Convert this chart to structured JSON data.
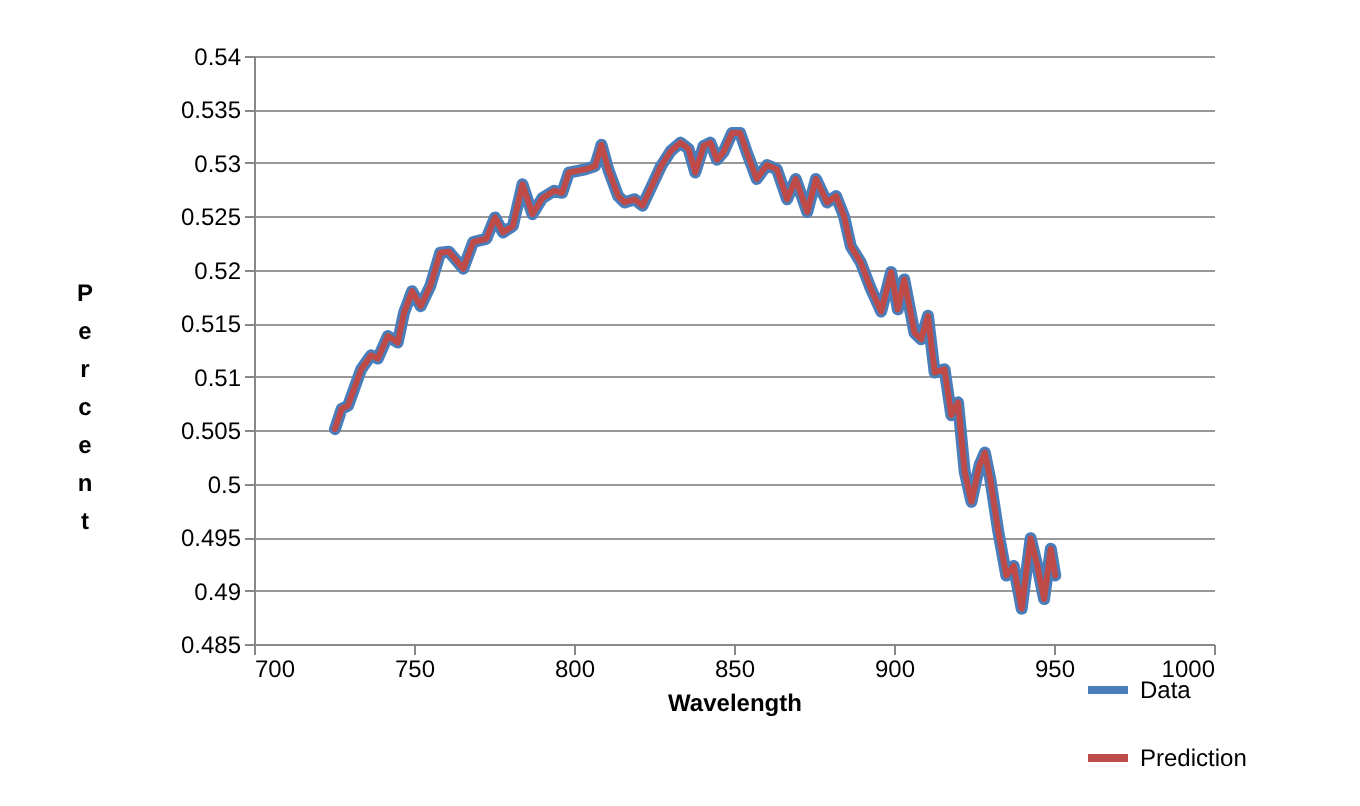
{
  "chart_data": {
    "type": "line",
    "xlabel": "Wavelength",
    "ylabel": "Percent",
    "x": [
      725.3,
      727.4,
      729.4,
      733.5,
      736.6,
      738.7,
      741.8,
      744.9,
      746.9,
      749.4,
      752.1,
      755.1,
      758.2,
      760.9,
      765.4,
      768.5,
      772.6,
      775.3,
      777.8,
      780.9,
      783.9,
      787.0,
      790.1,
      793.8,
      796.3,
      798.4,
      803.5,
      806.6,
      808.6,
      810.7,
      813.8,
      815.8,
      818.9,
      821.4,
      824.1,
      827.2,
      830.2,
      833.3,
      835.8,
      837.9,
      840.5,
      842.6,
      844.7,
      846.7,
      849.4,
      851.9,
      854.0,
      857.1,
      860.3,
      863.4,
      866.6,
      869.3,
      872.9,
      875.6,
      879.1,
      881.9,
      884.4,
      886.5,
      889.6,
      892.8,
      896.0,
      899.1,
      901.2,
      903.2,
      906.4,
      908.5,
      910.6,
      912.7,
      915.8,
      917.9,
      920.0,
      922.1,
      924.2,
      926.7,
      928.4,
      930.1,
      932.6,
      935.1,
      937.4,
      939.9,
      942.7,
      944.8,
      946.9,
      949.0,
      950.4
    ],
    "series": [
      {
        "name": "Data",
        "color": "#4a7ebb",
        "values": [
          0.5051,
          0.507,
          0.5073,
          0.5107,
          0.512,
          0.5117,
          0.5138,
          0.5132,
          0.516,
          0.518,
          0.5166,
          0.5185,
          0.5216,
          0.5217,
          0.5201,
          0.5226,
          0.5229,
          0.5249,
          0.5235,
          0.5241,
          0.528,
          0.5252,
          0.5267,
          0.5274,
          0.5272,
          0.5291,
          0.5294,
          0.5297,
          0.5317,
          0.5294,
          0.5269,
          0.5263,
          0.5266,
          0.526,
          0.5277,
          0.5297,
          0.5311,
          0.5319,
          0.5313,
          0.5291,
          0.5316,
          0.5319,
          0.5303,
          0.531,
          0.5328,
          0.5328,
          0.531,
          0.5285,
          0.5298,
          0.5294,
          0.5266,
          0.5285,
          0.5254,
          0.5285,
          0.5263,
          0.5269,
          0.525,
          0.5222,
          0.5207,
          0.5182,
          0.5161,
          0.5198,
          0.5163,
          0.5191,
          0.5141,
          0.5135,
          0.5157,
          0.5104,
          0.5107,
          0.5064,
          0.5076,
          0.5011,
          0.4983,
          0.5017,
          0.5029,
          0.5004,
          0.4955,
          0.4914,
          0.4923,
          0.4883,
          0.4949,
          0.4923,
          0.4892,
          0.4939,
          0.4914
        ]
      },
      {
        "name": "Prediction",
        "color": "#be4b48",
        "values": [
          0.5051,
          0.507,
          0.5073,
          0.5107,
          0.512,
          0.5117,
          0.5138,
          0.5132,
          0.516,
          0.518,
          0.5166,
          0.5185,
          0.5216,
          0.5217,
          0.5201,
          0.5226,
          0.5229,
          0.5249,
          0.5235,
          0.5241,
          0.528,
          0.5252,
          0.5267,
          0.5274,
          0.5272,
          0.5291,
          0.5294,
          0.5297,
          0.5317,
          0.5294,
          0.5269,
          0.5263,
          0.5266,
          0.526,
          0.5277,
          0.5297,
          0.5311,
          0.5319,
          0.5313,
          0.5291,
          0.5316,
          0.5319,
          0.5303,
          0.531,
          0.5328,
          0.5328,
          0.531,
          0.5285,
          0.5298,
          0.5294,
          0.5266,
          0.5285,
          0.5254,
          0.5285,
          0.5263,
          0.5269,
          0.525,
          0.5222,
          0.5207,
          0.5182,
          0.5161,
          0.5198,
          0.5163,
          0.5191,
          0.5141,
          0.5135,
          0.5157,
          0.5104,
          0.5107,
          0.5064,
          0.5076,
          0.5011,
          0.4983,
          0.5017,
          0.5029,
          0.5004,
          0.4955,
          0.4914,
          0.4923,
          0.4883,
          0.4949,
          0.4923,
          0.4892,
          0.4939,
          0.4914
        ]
      }
    ],
    "xlim": [
      700,
      1000
    ],
    "xticks": [
      700,
      750,
      800,
      850,
      900,
      950,
      1000
    ],
    "ylim": [
      0.485,
      0.54
    ],
    "yticks": [
      0.485,
      0.49,
      0.495,
      0.5,
      0.505,
      0.51,
      0.515,
      0.52,
      0.525,
      0.53,
      0.535,
      0.54
    ],
    "grid": "y",
    "legend": "bottom right",
    "marker": "none",
    "line_style": "solid"
  }
}
